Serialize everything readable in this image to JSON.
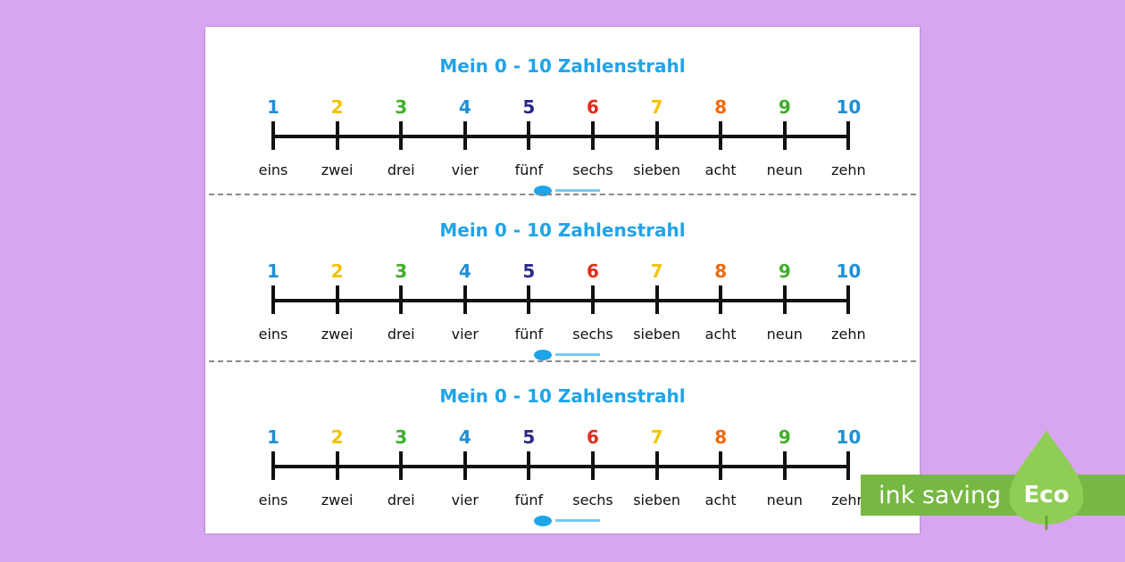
{
  "title": "Mein 0 - 10 Zahlenstrahl",
  "numbers": [
    "1",
    "2",
    "3",
    "4",
    "5",
    "6",
    "7",
    "8",
    "9",
    "10"
  ],
  "words": [
    "eins",
    "zwei",
    "drei",
    "vier",
    "fünf",
    "sechs",
    "sieben",
    "acht",
    "neun",
    "zehn"
  ],
  "number_colors": [
    "#1e8fd6",
    "#f2c100",
    "#3fae2a",
    "#1e8fd6",
    "#2b2a8a",
    "#e32b1a",
    "#f5c400",
    "#ef6a0c",
    "#3fae2a",
    "#1e8fd6"
  ],
  "strip_count": 3,
  "eco_badge": {
    "text": "ink saving",
    "label": "Eco",
    "bar_color": "#77b843",
    "leaf_color": "#8fce55"
  },
  "icons": {
    "logo": "twinkl-logo-icon",
    "leaf": "leaf-icon"
  }
}
